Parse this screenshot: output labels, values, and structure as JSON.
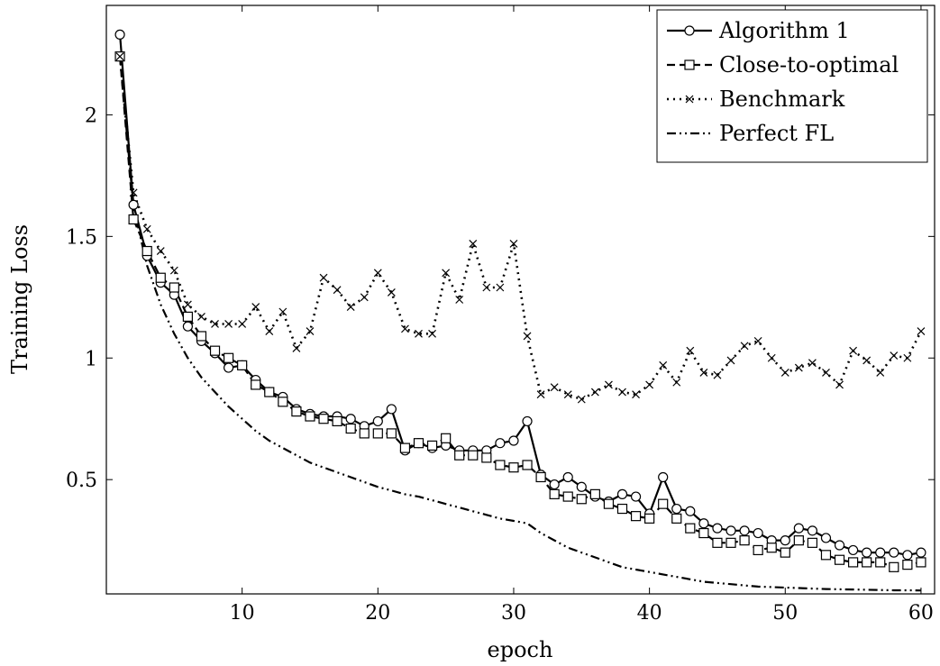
{
  "chart_data": {
    "type": "line",
    "title": "",
    "xlabel": "epoch",
    "ylabel": "Training Loss",
    "xlim": [
      0,
      61
    ],
    "ylim": [
      0.03,
      2.45
    ],
    "xticks": [
      10,
      20,
      30,
      40,
      50,
      60
    ],
    "xtick_labels": [
      "10",
      "20",
      "30",
      "40",
      "50",
      "60"
    ],
    "yticks": [
      0.5,
      1,
      1.5,
      2
    ],
    "ytick_labels": [
      "0.5",
      "1",
      "1.5",
      "2"
    ],
    "grid": false,
    "legend_position": "top-right",
    "series": [
      {
        "name": "Algorithm 1",
        "style": "solid",
        "marker": "circle",
        "x": [
          1,
          2,
          3,
          4,
          5,
          6,
          7,
          8,
          9,
          10,
          11,
          12,
          13,
          14,
          15,
          16,
          17,
          18,
          19,
          20,
          21,
          22,
          23,
          24,
          25,
          26,
          27,
          28,
          29,
          30,
          31,
          32,
          33,
          34,
          35,
          36,
          37,
          38,
          39,
          40,
          41,
          42,
          43,
          44,
          45,
          46,
          47,
          48,
          49,
          50,
          51,
          52,
          53,
          54,
          55,
          56,
          57,
          58,
          59,
          60
        ],
        "values": [
          2.33,
          1.63,
          1.42,
          1.31,
          1.26,
          1.13,
          1.07,
          1.02,
          0.96,
          0.97,
          0.91,
          0.86,
          0.84,
          0.79,
          0.77,
          0.76,
          0.76,
          0.75,
          0.72,
          0.74,
          0.79,
          0.62,
          0.65,
          0.63,
          0.64,
          0.62,
          0.62,
          0.62,
          0.65,
          0.66,
          0.74,
          0.52,
          0.48,
          0.51,
          0.47,
          0.43,
          0.41,
          0.44,
          0.43,
          0.36,
          0.51,
          0.38,
          0.37,
          0.32,
          0.3,
          0.29,
          0.29,
          0.28,
          0.25,
          0.25,
          0.3,
          0.29,
          0.26,
          0.23,
          0.21,
          0.2,
          0.2,
          0.2,
          0.19,
          0.2
        ]
      },
      {
        "name": "Close-to-optimal",
        "style": "dashed",
        "marker": "square",
        "x": [
          1,
          2,
          3,
          4,
          5,
          6,
          7,
          8,
          9,
          10,
          11,
          12,
          13,
          14,
          15,
          16,
          17,
          18,
          19,
          20,
          21,
          22,
          23,
          24,
          25,
          26,
          27,
          28,
          29,
          30,
          31,
          32,
          33,
          34,
          35,
          36,
          37,
          38,
          39,
          40,
          41,
          42,
          43,
          44,
          45,
          46,
          47,
          48,
          49,
          50,
          51,
          52,
          53,
          54,
          55,
          56,
          57,
          58,
          59,
          60
        ],
        "values": [
          2.24,
          1.57,
          1.44,
          1.33,
          1.29,
          1.17,
          1.09,
          1.03,
          1.0,
          0.97,
          0.89,
          0.86,
          0.82,
          0.78,
          0.76,
          0.75,
          0.74,
          0.71,
          0.69,
          0.69,
          0.69,
          0.63,
          0.65,
          0.64,
          0.67,
          0.6,
          0.6,
          0.59,
          0.56,
          0.55,
          0.56,
          0.51,
          0.44,
          0.43,
          0.42,
          0.44,
          0.4,
          0.38,
          0.35,
          0.34,
          0.4,
          0.34,
          0.3,
          0.28,
          0.24,
          0.24,
          0.25,
          0.21,
          0.22,
          0.2,
          0.25,
          0.24,
          0.19,
          0.17,
          0.16,
          0.16,
          0.16,
          0.14,
          0.15,
          0.16
        ]
      },
      {
        "name": "Benchmark",
        "style": "dotted",
        "marker": "cross",
        "x": [
          1,
          2,
          3,
          4,
          5,
          6,
          7,
          8,
          9,
          10,
          11,
          12,
          13,
          14,
          15,
          16,
          17,
          18,
          19,
          20,
          21,
          22,
          23,
          24,
          25,
          26,
          27,
          28,
          29,
          30,
          31,
          32,
          33,
          34,
          35,
          36,
          37,
          38,
          39,
          40,
          41,
          42,
          43,
          44,
          45,
          46,
          47,
          48,
          49,
          50,
          51,
          52,
          53,
          54,
          55,
          56,
          57,
          58,
          59,
          60
        ],
        "values": [
          2.24,
          1.68,
          1.53,
          1.44,
          1.36,
          1.22,
          1.17,
          1.14,
          1.14,
          1.14,
          1.21,
          1.11,
          1.19,
          1.04,
          1.11,
          1.33,
          1.28,
          1.21,
          1.25,
          1.35,
          1.27,
          1.12,
          1.1,
          1.1,
          1.35,
          1.24,
          1.47,
          1.29,
          1.29,
          1.47,
          1.09,
          0.85,
          0.88,
          0.85,
          0.83,
          0.86,
          0.89,
          0.86,
          0.85,
          0.89,
          0.97,
          0.9,
          1.03,
          0.94,
          0.93,
          0.99,
          1.05,
          1.07,
          1.0,
          0.94,
          0.96,
          0.98,
          0.94,
          0.89,
          1.03,
          0.99,
          0.94,
          1.01,
          1.0,
          1.11
        ]
      },
      {
        "name": "Perfect FL",
        "style": "dashdotdot",
        "marker": "none",
        "x": [
          1,
          2,
          3,
          4,
          5,
          6,
          7,
          8,
          9,
          10,
          11,
          12,
          13,
          14,
          15,
          16,
          17,
          18,
          19,
          20,
          21,
          22,
          23,
          24,
          25,
          26,
          27,
          28,
          29,
          30,
          31,
          32,
          33,
          34,
          35,
          36,
          37,
          38,
          39,
          40,
          41,
          42,
          43,
          44,
          45,
          46,
          47,
          48,
          49,
          50,
          51,
          52,
          53,
          54,
          55,
          56,
          57,
          58,
          59,
          60
        ],
        "values": [
          2.24,
          1.62,
          1.38,
          1.22,
          1.1,
          1.0,
          0.92,
          0.86,
          0.8,
          0.75,
          0.7,
          0.66,
          0.63,
          0.6,
          0.57,
          0.55,
          0.53,
          0.51,
          0.49,
          0.47,
          0.455,
          0.44,
          0.43,
          0.415,
          0.4,
          0.385,
          0.37,
          0.355,
          0.34,
          0.33,
          0.32,
          0.28,
          0.25,
          0.22,
          0.2,
          0.18,
          0.16,
          0.14,
          0.13,
          0.12,
          0.11,
          0.1,
          0.09,
          0.08,
          0.075,
          0.07,
          0.065,
          0.06,
          0.058,
          0.056,
          0.054,
          0.052,
          0.05,
          0.049,
          0.048,
          0.047,
          0.046,
          0.045,
          0.045,
          0.044
        ]
      }
    ]
  }
}
